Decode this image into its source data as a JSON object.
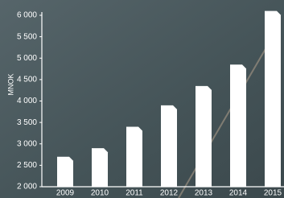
{
  "chart_data": {
    "type": "bar",
    "y_label": "MNOK",
    "categories": [
      "2009",
      "2010",
      "2011",
      "2012",
      "2013",
      "2014",
      "2015"
    ],
    "values": [
      2700,
      2900,
      3400,
      3900,
      4350,
      4850,
      6100
    ],
    "color": "#ffffff",
    "ylim": [
      2000,
      6000
    ],
    "yticks": [
      {
        "value": 2000,
        "label": "2 000"
      },
      {
        "value": 2500,
        "label": "2 500"
      },
      {
        "value": 3000,
        "label": "3 000"
      },
      {
        "value": 3500,
        "label": "3 500"
      },
      {
        "value": 4000,
        "label": "4 000"
      },
      {
        "value": 4500,
        "label": "4 500"
      },
      {
        "value": 5000,
        "label": "5 000"
      },
      {
        "value": 5500,
        "label": "5 500"
      },
      {
        "value": 6000,
        "label": "6 000"
      }
    ]
  }
}
